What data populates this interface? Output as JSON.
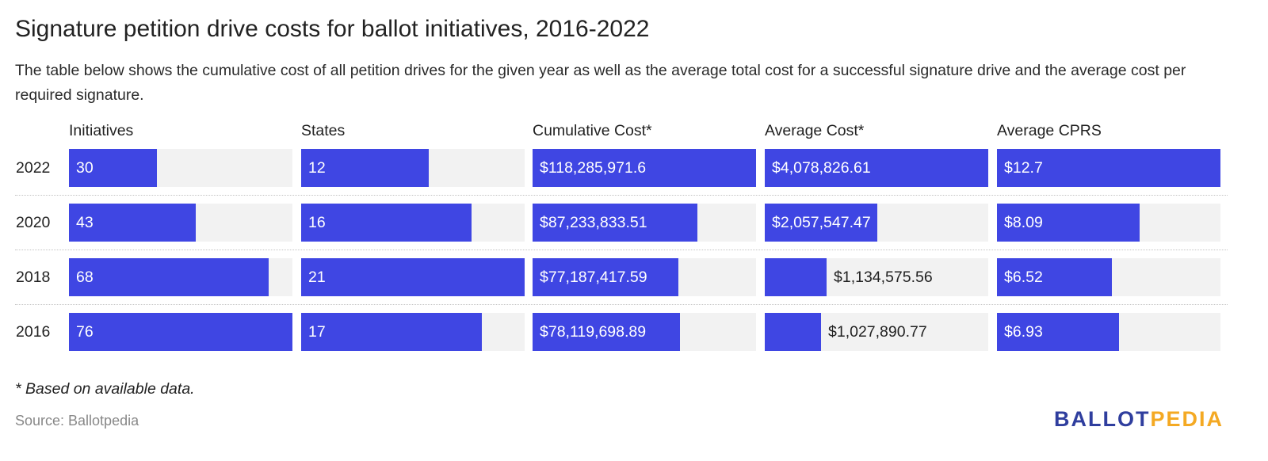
{
  "title": "Signature petition drive costs for ballot initiatives, 2016-2022",
  "subtitle": "The table below shows the cumulative cost of all petition drives for the given year as well as the average total cost for a successful signature drive and the average cost per required signature.",
  "footnote": "* Based on available data.",
  "source": "Source: Ballotpedia",
  "logo": {
    "part1": "BALLOT",
    "part2": "PEDIA"
  },
  "colors": {
    "bar": "#3f46e3",
    "track": "#f2f2f2",
    "logo_blue": "#2f3e9e",
    "logo_orange": "#f4a923"
  },
  "chart_data": {
    "type": "table",
    "columns": [
      {
        "key": "initiatives",
        "header": "Initiatives",
        "max": 76
      },
      {
        "key": "states",
        "header": "States",
        "max": 21
      },
      {
        "key": "cumulative",
        "header": "Cumulative Cost*",
        "max": 118285971.6
      },
      {
        "key": "average",
        "header": "Average Cost*",
        "max": 4078826.61
      },
      {
        "key": "cprs",
        "header": "Average CPRS",
        "max": 12.7
      }
    ],
    "rows": [
      {
        "year": "2022",
        "values": [
          30,
          12,
          118285971.6,
          4078826.61,
          12.7
        ],
        "labels": [
          "30",
          "12",
          "$118,285,971.6",
          "$4,078,826.61",
          "$12.7"
        ]
      },
      {
        "year": "2020",
        "values": [
          43,
          16,
          87233833.51,
          2057547.47,
          8.09
        ],
        "labels": [
          "43",
          "16",
          "$87,233,833.51",
          "$2,057,547.47",
          "$8.09"
        ]
      },
      {
        "year": "2018",
        "values": [
          68,
          21,
          77187417.59,
          1134575.56,
          6.52
        ],
        "labels": [
          "68",
          "21",
          "$77,187,417.59",
          "$1,134,575.56",
          "$6.52"
        ]
      },
      {
        "year": "2016",
        "values": [
          76,
          17,
          78119698.89,
          1027890.77,
          6.93
        ],
        "labels": [
          "76",
          "17",
          "$78,119,698.89",
          "$1,027,890.77",
          "$6.93"
        ]
      }
    ]
  }
}
